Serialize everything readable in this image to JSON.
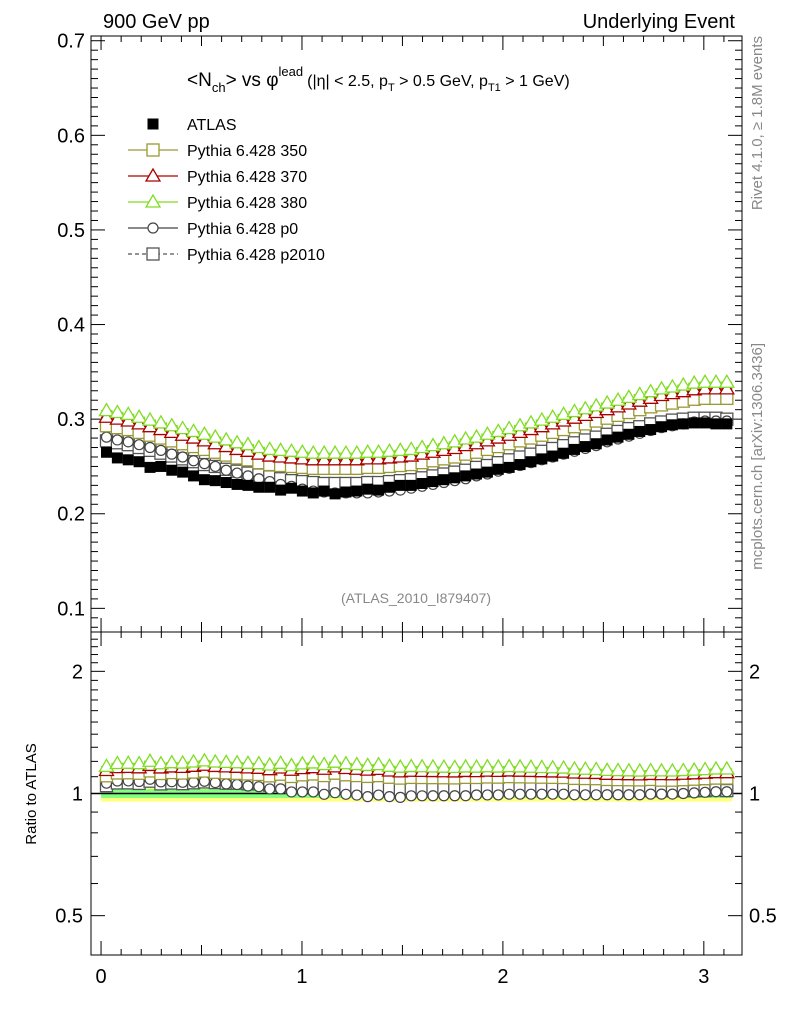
{
  "header": {
    "left": "900 GeV pp",
    "right": "Underlying Event"
  },
  "side_labels": {
    "rivet": "Rivet 4.1.0, ≥ 1.8M events",
    "mcplots": "mcplots.cern.ch [arXiv:1306.3436]"
  },
  "title": {
    "main": "<N",
    "main_sub": "ch",
    "vs": "> vs φ",
    "vs_sup": "lead",
    "cuts_a": "(|η| < 2.5, p",
    "cuts_a_sub": "T",
    "cuts_b": " > 0.5 GeV, p",
    "cuts_b_sub": "T1",
    "cuts_c": " > 1 GeV)"
  },
  "analysis_tag": "(ATLAS_2010_I879407)",
  "ratio_ylabel": "Ratio to ATLAS",
  "chart_data": [
    {
      "type": "scatter",
      "panel": "main",
      "xlim": [
        -0.05,
        3.19
      ],
      "ylim": [
        0.075,
        0.705
      ],
      "yticks": [
        "0.1",
        "0.2",
        "0.3",
        "0.4",
        "0.5",
        "0.6",
        "0.7"
      ],
      "ytick_values": [
        0.1,
        0.2,
        0.3,
        0.4,
        0.5,
        0.6,
        0.7
      ],
      "legend_position": "top-left",
      "series": [
        {
          "name": "ATLAS",
          "color": "#000000",
          "marker": "filled-square",
          "line": "none",
          "values": [
            0.265,
            0.259,
            0.257,
            0.255,
            0.249,
            0.25,
            0.246,
            0.244,
            0.24,
            0.236,
            0.235,
            0.233,
            0.231,
            0.23,
            0.228,
            0.228,
            0.225,
            0.227,
            0.224,
            0.222,
            0.224,
            0.221,
            0.223,
            0.224,
            0.226,
            0.225,
            0.228,
            0.23,
            0.23,
            0.232,
            0.234,
            0.236,
            0.238,
            0.24,
            0.242,
            0.244,
            0.247,
            0.249,
            0.252,
            0.255,
            0.258,
            0.261,
            0.264,
            0.268,
            0.271,
            0.274,
            0.278,
            0.281,
            0.284,
            0.287,
            0.289,
            0.292,
            0.294,
            0.295,
            0.296,
            0.296,
            0.295,
            0.295
          ]
        },
        {
          "name": "Pythia 6.428 350",
          "color": "#999933",
          "marker": "open-square",
          "line": "solid",
          "values": [
            0.293,
            0.291,
            0.289,
            0.286,
            0.283,
            0.28,
            0.277,
            0.274,
            0.271,
            0.268,
            0.265,
            0.262,
            0.259,
            0.257,
            0.254,
            0.252,
            0.251,
            0.25,
            0.249,
            0.248,
            0.248,
            0.248,
            0.248,
            0.248,
            0.249,
            0.249,
            0.25,
            0.251,
            0.252,
            0.254,
            0.256,
            0.258,
            0.26,
            0.263,
            0.265,
            0.268,
            0.271,
            0.274,
            0.277,
            0.28,
            0.283,
            0.286,
            0.289,
            0.292,
            0.295,
            0.298,
            0.301,
            0.304,
            0.307,
            0.31,
            0.313,
            0.315,
            0.317,
            0.319,
            0.321,
            0.322,
            0.322,
            0.322
          ]
        },
        {
          "name": "Pythia 6.428 370",
          "color": "#aa0000",
          "marker": "open-triangle",
          "line": "solid",
          "values": [
            0.302,
            0.3,
            0.298,
            0.295,
            0.292,
            0.289,
            0.286,
            0.283,
            0.28,
            0.277,
            0.274,
            0.271,
            0.268,
            0.266,
            0.263,
            0.261,
            0.26,
            0.259,
            0.258,
            0.257,
            0.257,
            0.257,
            0.257,
            0.257,
            0.258,
            0.258,
            0.259,
            0.26,
            0.261,
            0.263,
            0.265,
            0.267,
            0.269,
            0.272,
            0.274,
            0.277,
            0.28,
            0.283,
            0.286,
            0.289,
            0.292,
            0.295,
            0.298,
            0.301,
            0.304,
            0.307,
            0.31,
            0.313,
            0.316,
            0.319,
            0.322,
            0.325,
            0.327,
            0.329,
            0.331,
            0.332,
            0.332,
            0.332
          ]
        },
        {
          "name": "Pythia 6.428 380",
          "color": "#80dd22",
          "marker": "open-triangle",
          "line": "solid",
          "values": [
            0.309,
            0.307,
            0.305,
            0.302,
            0.299,
            0.296,
            0.293,
            0.29,
            0.287,
            0.284,
            0.281,
            0.278,
            0.275,
            0.273,
            0.27,
            0.268,
            0.267,
            0.266,
            0.265,
            0.264,
            0.264,
            0.264,
            0.264,
            0.264,
            0.265,
            0.265,
            0.266,
            0.267,
            0.268,
            0.27,
            0.272,
            0.274,
            0.276,
            0.279,
            0.281,
            0.284,
            0.287,
            0.29,
            0.293,
            0.296,
            0.299,
            0.302,
            0.305,
            0.308,
            0.311,
            0.314,
            0.317,
            0.32,
            0.323,
            0.326,
            0.329,
            0.332,
            0.334,
            0.336,
            0.338,
            0.339,
            0.339,
            0.339
          ]
        },
        {
          "name": "Pythia 6.428 p0",
          "color": "#444444",
          "marker": "open-circle",
          "line": "solid",
          "values": [
            0.281,
            0.278,
            0.276,
            0.273,
            0.27,
            0.267,
            0.263,
            0.26,
            0.256,
            0.253,
            0.25,
            0.246,
            0.243,
            0.24,
            0.237,
            0.234,
            0.231,
            0.229,
            0.226,
            0.224,
            0.223,
            0.222,
            0.222,
            0.222,
            0.222,
            0.223,
            0.224,
            0.225,
            0.227,
            0.229,
            0.231,
            0.233,
            0.235,
            0.237,
            0.24,
            0.242,
            0.245,
            0.248,
            0.251,
            0.254,
            0.257,
            0.26,
            0.263,
            0.266,
            0.269,
            0.272,
            0.276,
            0.279,
            0.282,
            0.285,
            0.288,
            0.291,
            0.293,
            0.295,
            0.297,
            0.298,
            0.298,
            0.298
          ]
        },
        {
          "name": "Pythia 6.428 p2010",
          "color": "#555555",
          "marker": "open-square",
          "line": "dashed",
          "values": [
            0.277,
            0.275,
            0.273,
            0.27,
            0.267,
            0.264,
            0.261,
            0.258,
            0.255,
            0.252,
            0.25,
            0.247,
            0.245,
            0.243,
            0.241,
            0.239,
            0.237,
            0.235,
            0.234,
            0.233,
            0.232,
            0.232,
            0.232,
            0.232,
            0.233,
            0.233,
            0.234,
            0.235,
            0.236,
            0.238,
            0.24,
            0.242,
            0.244,
            0.246,
            0.249,
            0.251,
            0.254,
            0.257,
            0.26,
            0.263,
            0.266,
            0.269,
            0.272,
            0.275,
            0.278,
            0.281,
            0.284,
            0.287,
            0.29,
            0.292,
            0.295,
            0.297,
            0.299,
            0.3,
            0.301,
            0.301,
            0.301,
            0.3
          ]
        }
      ]
    },
    {
      "type": "scatter",
      "panel": "ratio",
      "xlabel": "",
      "ylabel": "Ratio to ATLAS",
      "xlim": [
        -0.05,
        3.19
      ],
      "ylim_log": [
        0.4,
        2.5
      ],
      "xticks": [
        "0",
        "1",
        "2",
        "3"
      ],
      "xtick_values": [
        0,
        1,
        2,
        3
      ],
      "yticks": [
        "0.5",
        "1",
        "2"
      ],
      "ytick_values": [
        0.5,
        1,
        2
      ],
      "reference_band": {
        "inner": [
          0.975,
          1.025
        ],
        "outer": [
          0.955,
          1.045
        ],
        "inner_color": "#80ff80",
        "outer_color": "#ffff80"
      },
      "note": "ratio series = each Pythia series divided by ATLAS values"
    }
  ]
}
